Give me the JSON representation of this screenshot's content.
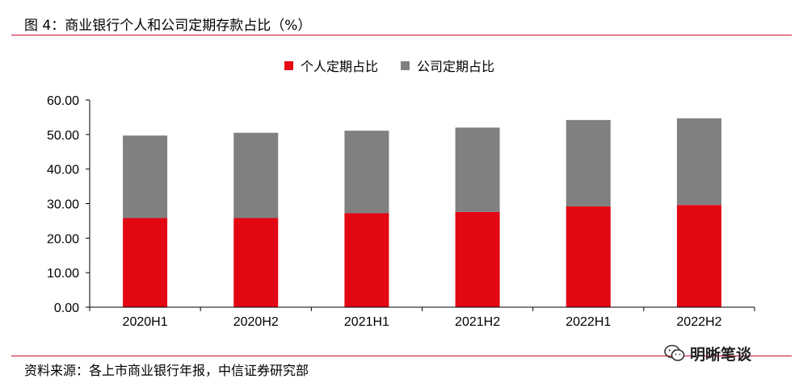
{
  "header": {
    "title": "图 4：商业银行个人和公司定期存款占比（%）"
  },
  "footer": {
    "source": "资料来源：各上市商业银行年报，中信证券研究部",
    "watermark": "明晰笔谈",
    "watermark_icon": "wechat-icon"
  },
  "colors": {
    "accent": "#c8102e",
    "personal": "#e30613",
    "corporate": "#808080"
  },
  "chart_data": {
    "type": "bar",
    "stacked": true,
    "categories": [
      "2020H1",
      "2020H2",
      "2021H1",
      "2021H2",
      "2022H1",
      "2022H2"
    ],
    "series": [
      {
        "name": "个人定期占比",
        "values": [
          25.8,
          25.8,
          27.2,
          27.6,
          29.2,
          29.6
        ],
        "color": "#e30613"
      },
      {
        "name": "公司定期占比",
        "values": [
          23.9,
          24.7,
          23.9,
          24.4,
          25.0,
          25.1
        ],
        "color": "#808080"
      }
    ],
    "yticks": [
      "0.00",
      "10.00",
      "20.00",
      "30.00",
      "40.00",
      "50.00",
      "60.00"
    ],
    "ylim": [
      0,
      60
    ],
    "legend_position": "top-center",
    "grid": false
  }
}
